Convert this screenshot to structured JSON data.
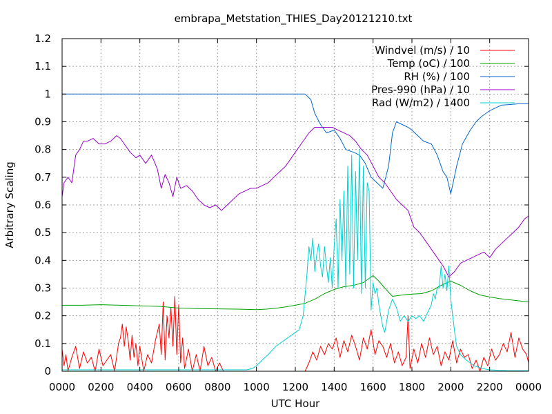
{
  "chart_data": {
    "type": "line",
    "title": "embrapa_Metstation_THIES_Day20121210.txt",
    "xlabel": "UTC Hour",
    "ylabel": "Arbitrary Scaling",
    "xlim": [
      0,
      24
    ],
    "ylim": [
      0,
      1.2
    ],
    "grid": true,
    "legend_position": "top-right",
    "x_tick_labels": [
      "0000",
      "0200",
      "0400",
      "0600",
      "0800",
      "1000",
      "1200",
      "1400",
      "1600",
      "1800",
      "2000",
      "2200",
      "0000"
    ],
    "y_tick_labels": [
      "0",
      "0.1",
      "0.2",
      "0.3",
      "0.4",
      "0.5",
      "0.6",
      "0.7",
      "0.8",
      "0.9",
      "1",
      "1.1",
      "1.2"
    ],
    "series": [
      {
        "name": "Windvel (m/s) / 10",
        "color": "#ff0000",
        "x": [
          0,
          0.1,
          0.2,
          0.3,
          0.5,
          0.7,
          0.9,
          1.1,
          1.3,
          1.5,
          1.7,
          1.9,
          2.1,
          2.3,
          2.5,
          2.7,
          2.9,
          3.0,
          3.1,
          3.2,
          3.3,
          3.4,
          3.5,
          3.6,
          3.7,
          3.8,
          3.9,
          4.0,
          4.2,
          4.4,
          4.6,
          4.8,
          5.0,
          5.1,
          5.2,
          5.3,
          5.4,
          5.5,
          5.6,
          5.7,
          5.8,
          5.9,
          6.0,
          6.1,
          6.2,
          6.3,
          6.5,
          6.7,
          6.9,
          7.1,
          7.3,
          7.5,
          7.7,
          7.9,
          8.1,
          8.3,
          8.5,
          9.0,
          10.0,
          11.0,
          12.0,
          12.5,
          12.7,
          12.9,
          13.1,
          13.3,
          13.5,
          13.7,
          13.9,
          14.1,
          14.3,
          14.5,
          14.7,
          14.9,
          15.1,
          15.3,
          15.5,
          15.7,
          15.9,
          16.1,
          16.3,
          16.5,
          16.7,
          16.9,
          17.1,
          17.3,
          17.5,
          17.7,
          17.8,
          17.9,
          18.1,
          18.3,
          18.5,
          18.7,
          18.9,
          19.1,
          19.3,
          19.5,
          19.7,
          19.9,
          20.1,
          20.3,
          20.5,
          20.7,
          20.9,
          21.1,
          21.3,
          21.5,
          21.7,
          21.9,
          22.1,
          22.3,
          22.5,
          22.7,
          22.9,
          23.1,
          23.3,
          23.5,
          23.7,
          23.9,
          24
        ],
        "values": [
          0.08,
          0.02,
          0.06,
          0.0,
          0.05,
          0.09,
          0.01,
          0.07,
          0.03,
          0.05,
          0.0,
          0.08,
          0.02,
          0.04,
          0.06,
          0.0,
          0.1,
          0.12,
          0.17,
          0.09,
          0.16,
          0.11,
          0.04,
          0.13,
          0.05,
          0.1,
          0.02,
          0.09,
          0.0,
          0.06,
          0.03,
          0.11,
          0.17,
          0.06,
          0.25,
          0.04,
          0.2,
          0.12,
          0.23,
          0.09,
          0.27,
          0.06,
          0.24,
          0.03,
          0.12,
          0.01,
          0.08,
          0.0,
          0.06,
          0.0,
          0.09,
          0.02,
          0.05,
          0.0,
          0.03,
          0.0,
          0.0,
          0.0,
          0.0,
          0.0,
          0.0,
          0.0,
          0.03,
          0.07,
          0.04,
          0.09,
          0.06,
          0.1,
          0.08,
          0.12,
          0.05,
          0.11,
          0.07,
          0.13,
          0.09,
          0.04,
          0.12,
          0.08,
          0.15,
          0.06,
          0.11,
          0.09,
          0.05,
          0.1,
          0.03,
          0.07,
          0.02,
          0.05,
          0.2,
          0.01,
          0.08,
          0.03,
          0.1,
          0.05,
          0.12,
          0.06,
          0.09,
          0.02,
          0.07,
          0.04,
          0.11,
          0.03,
          0.08,
          0.05,
          0.06,
          0.01,
          0.04,
          0.0,
          0.05,
          0.02,
          0.08,
          0.04,
          0.06,
          0.1,
          0.07,
          0.14,
          0.05,
          0.12,
          0.08,
          0.06,
          0.03
        ]
      },
      {
        "name": "Temp (oC) / 100",
        "color": "#00a000",
        "x": [
          0,
          1,
          2,
          3,
          4,
          5,
          6,
          7,
          8,
          9,
          10,
          10.5,
          11,
          11.5,
          12,
          12.5,
          13,
          13.5,
          14,
          14.5,
          15,
          15.5,
          16,
          16.3,
          16.6,
          17,
          17.5,
          18,
          18.5,
          19,
          19.5,
          20,
          20.5,
          21,
          21.5,
          22,
          22.5,
          23,
          23.5,
          24
        ],
        "values": [
          0.238,
          0.238,
          0.24,
          0.238,
          0.236,
          0.234,
          0.228,
          0.226,
          0.225,
          0.224,
          0.222,
          0.224,
          0.227,
          0.232,
          0.238,
          0.245,
          0.26,
          0.28,
          0.295,
          0.305,
          0.31,
          0.32,
          0.345,
          0.325,
          0.3,
          0.27,
          0.275,
          0.278,
          0.28,
          0.29,
          0.31,
          0.325,
          0.31,
          0.29,
          0.275,
          0.268,
          0.262,
          0.258,
          0.254,
          0.25
        ]
      },
      {
        "name": "RH (%) / 100",
        "color": "#0066cc",
        "x": [
          0,
          2,
          4,
          6,
          8,
          10,
          11,
          12,
          12.5,
          12.8,
          13,
          13.3,
          13.6,
          14,
          14.3,
          14.6,
          15,
          15.3,
          15.6,
          15.9,
          16.2,
          16.5,
          16.8,
          17,
          17.2,
          17.5,
          17.8,
          18,
          18.3,
          18.6,
          19,
          19.3,
          19.6,
          19.8,
          20,
          20.3,
          20.6,
          21,
          21.3,
          21.6,
          22,
          22.3,
          22.6,
          23,
          23.5,
          24
        ],
        "values": [
          1.0,
          1.0,
          1.0,
          1.0,
          1.0,
          1.0,
          1.0,
          1.0,
          1.0,
          0.98,
          0.93,
          0.89,
          0.86,
          0.87,
          0.84,
          0.8,
          0.79,
          0.78,
          0.75,
          0.7,
          0.68,
          0.66,
          0.74,
          0.86,
          0.9,
          0.89,
          0.88,
          0.87,
          0.85,
          0.83,
          0.82,
          0.78,
          0.72,
          0.7,
          0.64,
          0.74,
          0.82,
          0.87,
          0.9,
          0.92,
          0.94,
          0.95,
          0.96,
          0.962,
          0.965,
          0.966
        ]
      },
      {
        "name": "Pres-990 (hPa) / 10",
        "color": "#9900cc",
        "x": [
          0,
          0.1,
          0.3,
          0.5,
          0.7,
          0.9,
          1.1,
          1.3,
          1.6,
          1.9,
          2.2,
          2.5,
          2.8,
          3.0,
          3.2,
          3.5,
          3.8,
          4.0,
          4.3,
          4.6,
          4.9,
          5.1,
          5.3,
          5.5,
          5.7,
          5.9,
          6.1,
          6.4,
          6.7,
          7.0,
          7.3,
          7.6,
          7.9,
          8.2,
          8.5,
          8.8,
          9.1,
          9.4,
          9.7,
          10.0,
          10.3,
          10.6,
          10.9,
          11.2,
          11.5,
          11.8,
          12.1,
          12.4,
          12.7,
          13.0,
          13.3,
          13.6,
          13.9,
          14.2,
          14.5,
          14.8,
          15.1,
          15.4,
          15.7,
          16.0,
          16.3,
          16.6,
          16.9,
          17.2,
          17.5,
          17.8,
          18.1,
          18.4,
          18.7,
          19.0,
          19.3,
          19.6,
          19.9,
          20.2,
          20.5,
          20.8,
          21.1,
          21.4,
          21.7,
          22.0,
          22.3,
          22.6,
          22.9,
          23.2,
          23.5,
          23.8,
          24
        ],
        "values": [
          0.63,
          0.68,
          0.7,
          0.68,
          0.78,
          0.8,
          0.83,
          0.83,
          0.84,
          0.82,
          0.82,
          0.83,
          0.85,
          0.84,
          0.82,
          0.79,
          0.77,
          0.78,
          0.75,
          0.78,
          0.73,
          0.66,
          0.71,
          0.68,
          0.63,
          0.7,
          0.66,
          0.67,
          0.65,
          0.62,
          0.6,
          0.59,
          0.6,
          0.58,
          0.6,
          0.62,
          0.64,
          0.65,
          0.66,
          0.66,
          0.67,
          0.68,
          0.7,
          0.72,
          0.74,
          0.77,
          0.8,
          0.83,
          0.86,
          0.88,
          0.88,
          0.88,
          0.88,
          0.87,
          0.86,
          0.85,
          0.83,
          0.8,
          0.78,
          0.74,
          0.7,
          0.68,
          0.65,
          0.62,
          0.6,
          0.58,
          0.52,
          0.5,
          0.47,
          0.44,
          0.41,
          0.38,
          0.34,
          0.36,
          0.39,
          0.4,
          0.41,
          0.42,
          0.43,
          0.41,
          0.44,
          0.46,
          0.48,
          0.5,
          0.52,
          0.55,
          0.56
        ]
      },
      {
        "name": "Rad (W/m2) / 1400",
        "color": "#00d0d0",
        "x": [
          0,
          5,
          9.5,
          9.8,
          10.0,
          10.3,
          10.6,
          11.0,
          11.4,
          11.8,
          12.0,
          12.2,
          12.4,
          12.6,
          12.7,
          12.8,
          12.9,
          13.0,
          13.1,
          13.2,
          13.3,
          13.4,
          13.5,
          13.6,
          13.7,
          13.8,
          13.9,
          14.0,
          14.1,
          14.2,
          14.3,
          14.4,
          14.5,
          14.6,
          14.7,
          14.8,
          14.9,
          15.0,
          15.1,
          15.2,
          15.3,
          15.4,
          15.5,
          15.6,
          15.7,
          15.8,
          15.9,
          16.0,
          16.1,
          16.2,
          16.3,
          16.4,
          16.5,
          16.6,
          16.7,
          16.8,
          16.9,
          17.0,
          17.2,
          17.4,
          17.6,
          17.8,
          18.0,
          18.2,
          18.4,
          18.6,
          18.8,
          19.0,
          19.1,
          19.2,
          19.3,
          19.4,
          19.5,
          19.6,
          19.7,
          19.8,
          19.9,
          20.0,
          20.1,
          20.2,
          20.3,
          20.5,
          20.8,
          21.2,
          21.6,
          22.0,
          22.5,
          23,
          24
        ],
        "values": [
          0.005,
          0.005,
          0.005,
          0.01,
          0.02,
          0.04,
          0.06,
          0.09,
          0.11,
          0.13,
          0.14,
          0.15,
          0.2,
          0.35,
          0.45,
          0.4,
          0.48,
          0.36,
          0.42,
          0.46,
          0.38,
          0.34,
          0.45,
          0.38,
          0.32,
          0.41,
          0.3,
          0.45,
          0.55,
          0.3,
          0.62,
          0.4,
          0.65,
          0.3,
          0.74,
          0.35,
          0.78,
          0.3,
          0.72,
          0.4,
          0.8,
          0.28,
          0.74,
          0.3,
          0.68,
          0.65,
          0.22,
          0.32,
          0.28,
          0.3,
          0.24,
          0.2,
          0.16,
          0.14,
          0.18,
          0.22,
          0.24,
          0.26,
          0.23,
          0.18,
          0.2,
          0.18,
          0.2,
          0.19,
          0.2,
          0.18,
          0.21,
          0.24,
          0.28,
          0.26,
          0.3,
          0.3,
          0.38,
          0.3,
          0.35,
          0.29,
          0.38,
          0.26,
          0.2,
          0.14,
          0.09,
          0.06,
          0.04,
          0.02,
          0.01,
          0.005,
          0.003,
          0.002,
          0.002
        ]
      }
    ]
  }
}
